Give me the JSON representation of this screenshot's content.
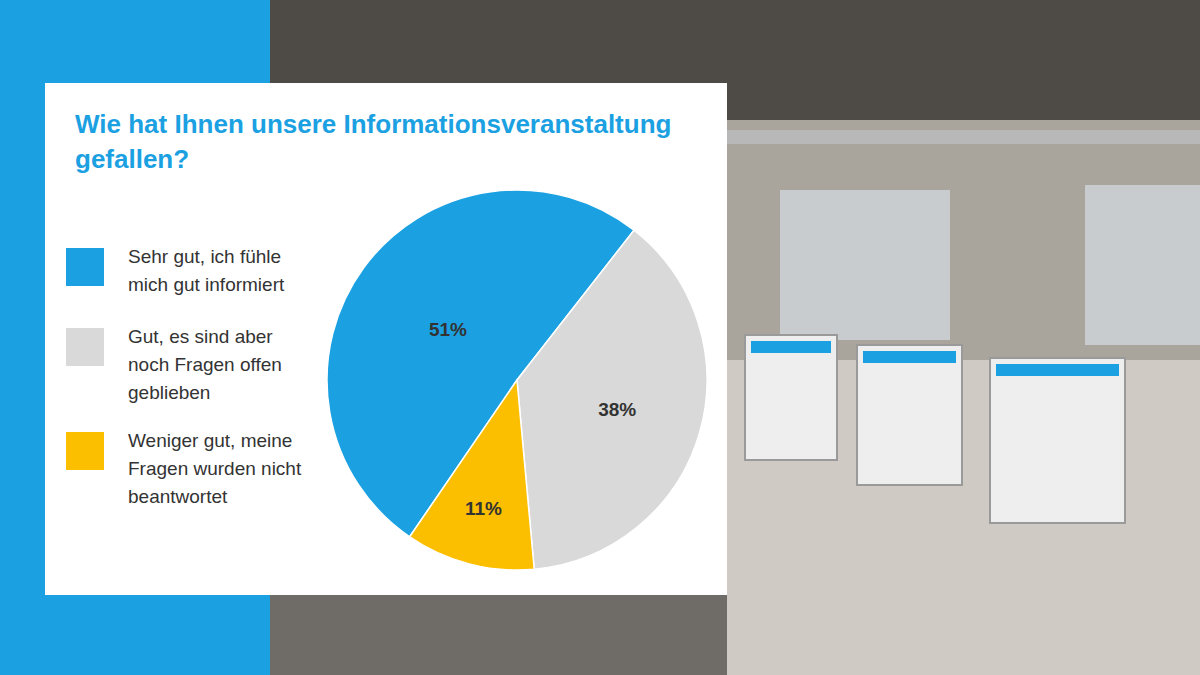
{
  "chart_data": {
    "type": "pie",
    "title": "Wie hat Ihnen unsere Informationsveranstaltung gefallen?",
    "categories": [
      "Sehr gut, ich fühle mich gut informiert",
      "Gut, es sind aber noch Fragen offen geblieben",
      "Weniger gut, meine Fragen wurden nicht beantwortet"
    ],
    "values": [
      51,
      38,
      11
    ],
    "value_labels": [
      "51%",
      "38%",
      "11%"
    ],
    "colors": [
      "#1ba1e2",
      "#d9d9d9",
      "#fcbf00"
    ],
    "data_labels": true,
    "legend": "left"
  }
}
